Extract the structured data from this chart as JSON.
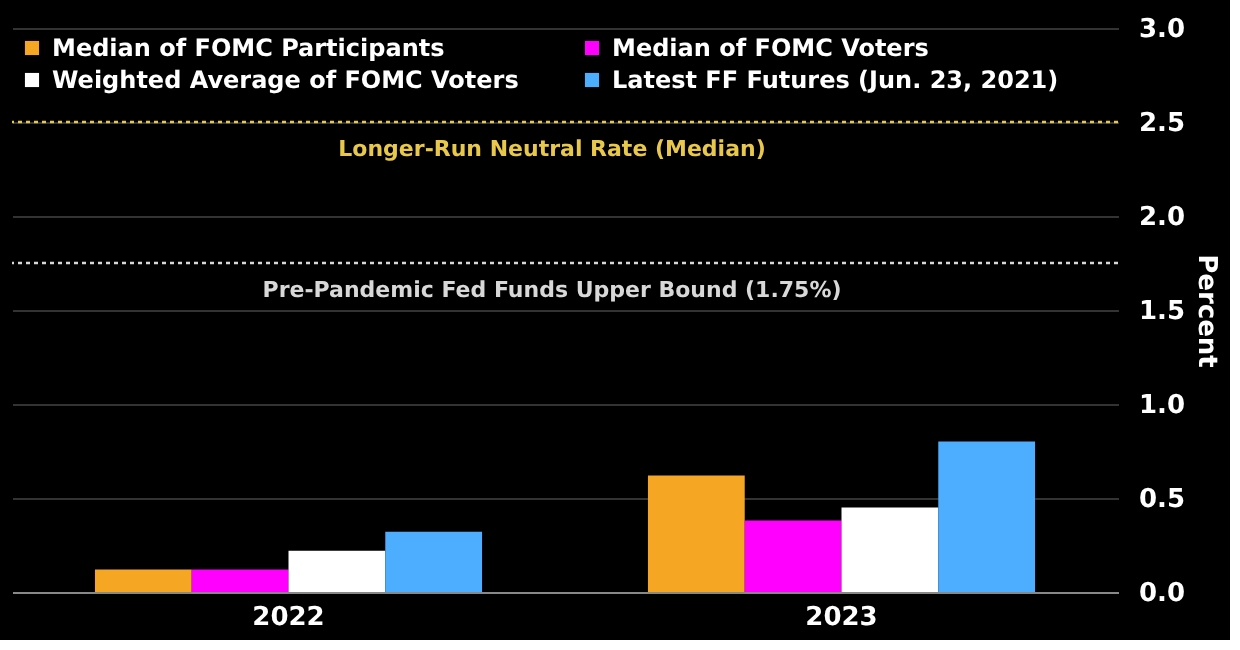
{
  "chart_data": {
    "type": "bar",
    "ylabel": "Percent",
    "categories": [
      "2022",
      "2023"
    ],
    "series": [
      {
        "name": "Median of FOMC Participants",
        "color": "#f5a623",
        "values": [
          0.12,
          0.62
        ]
      },
      {
        "name": "Median of FOMC Voters",
        "color": "#ff00ff",
        "values": [
          0.12,
          0.38
        ]
      },
      {
        "name": "Weighted Average of FOMC Voters",
        "color": "#ffffff",
        "values": [
          0.22,
          0.45
        ]
      },
      {
        "name": "Latest FF Futures (Jun. 23, 2021)",
        "color": "#4daeff",
        "values": [
          0.32,
          0.8
        ]
      }
    ],
    "ylim": [
      0,
      3
    ],
    "yticks": [
      {
        "value": 0,
        "label": "0.0"
      },
      {
        "value": 0.5,
        "label": "0.5"
      },
      {
        "value": 1,
        "label": "1.0"
      },
      {
        "value": 1.5,
        "label": "1.5"
      },
      {
        "value": 2,
        "label": "2.0"
      },
      {
        "value": 2.5,
        "label": "2.5"
      },
      {
        "value": 3,
        "label": "3.0"
      }
    ],
    "grid": "y",
    "legend": "top left",
    "ref_lines": [
      {
        "axis": "y",
        "value": 2.5,
        "label": "Longer-Run Neutral Rate (Median)",
        "color": "#e8c84a",
        "line_style": "dotted"
      },
      {
        "axis": "y",
        "value": 1.75,
        "label": "Pre-Pandemic Fed Funds Upper Bound (1.75%)",
        "color": "#d8d8d8",
        "line_style": "dotted"
      }
    ]
  }
}
